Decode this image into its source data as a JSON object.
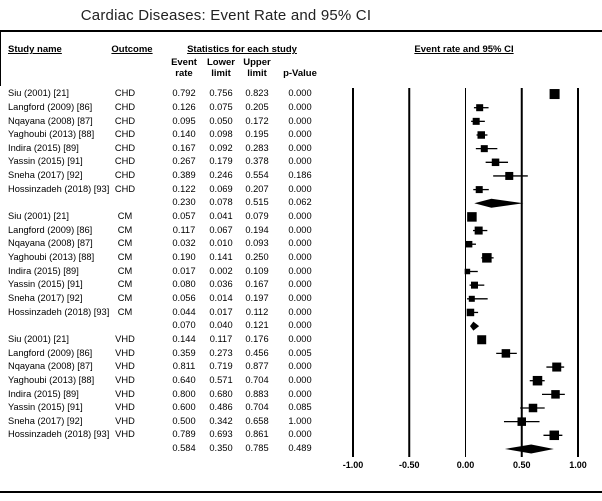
{
  "chart_data": {
    "type": "forest",
    "title": "Cardiac Diseases: Event Rate and 95% CI",
    "columns": {
      "study": "Study name",
      "outcome": "Outcome",
      "stats_group": "Statistics for each study",
      "plot_group": "Event rate and 95% CI",
      "event_rate": "Event\nrate",
      "lower_limit": "Lower\nlimit",
      "upper_limit": "Upper\nlimit",
      "p_value": "p-Value"
    },
    "groups": [
      {
        "outcome": "CHD",
        "studies": [
          {
            "name": "Siu (2001) [21]",
            "rate": 0.792,
            "lower": 0.756,
            "upper": 0.823,
            "p": 0.0,
            "marker_size": 10
          },
          {
            "name": "Langford (2009) [86]",
            "rate": 0.126,
            "lower": 0.075,
            "upper": 0.205,
            "p": 0.0,
            "marker_size": 7
          },
          {
            "name": "Nqayana (2008) [87]",
            "rate": 0.095,
            "lower": 0.05,
            "upper": 0.172,
            "p": 0.0,
            "marker_size": 7
          },
          {
            "name": "Yaghoubi (2013) [88]",
            "rate": 0.14,
            "lower": 0.098,
            "upper": 0.195,
            "p": 0.0,
            "marker_size": 7.5
          },
          {
            "name": "Indira (2015) [89]",
            "rate": 0.167,
            "lower": 0.092,
            "upper": 0.283,
            "p": 0.0,
            "marker_size": 7
          },
          {
            "name": "Yassin (2015) [91]",
            "rate": 0.267,
            "lower": 0.179,
            "upper": 0.378,
            "p": 0.0,
            "marker_size": 7.5
          },
          {
            "name": "Sneha (2017) [92]",
            "rate": 0.389,
            "lower": 0.246,
            "upper": 0.554,
            "p": 0.186,
            "marker_size": 8
          },
          {
            "name": "Hossinzadeh (2018) [93]",
            "rate": 0.122,
            "lower": 0.069,
            "upper": 0.207,
            "p": 0.0,
            "marker_size": 7
          }
        ],
        "summary": {
          "rate": 0.23,
          "lower": 0.078,
          "upper": 0.515,
          "p": 0.062
        }
      },
      {
        "outcome": "CM",
        "studies": [
          {
            "name": "Siu (2001) [21]",
            "rate": 0.057,
            "lower": 0.041,
            "upper": 0.079,
            "p": 0.0,
            "marker_size": 9.5
          },
          {
            "name": "Langford (2009) [86]",
            "rate": 0.117,
            "lower": 0.067,
            "upper": 0.194,
            "p": 0.0,
            "marker_size": 8
          },
          {
            "name": "Nqayana (2008) [87]",
            "rate": 0.032,
            "lower": 0.01,
            "upper": 0.093,
            "p": 0.0,
            "marker_size": 6.5
          },
          {
            "name": "Yaghoubi (2013) [88]",
            "rate": 0.19,
            "lower": 0.141,
            "upper": 0.25,
            "p": 0.0,
            "marker_size": 9.5
          },
          {
            "name": "Indira (2015) [89]",
            "rate": 0.017,
            "lower": 0.002,
            "upper": 0.109,
            "p": 0.0,
            "marker_size": 5.5
          },
          {
            "name": "Yassin (2015) [91]",
            "rate": 0.08,
            "lower": 0.036,
            "upper": 0.167,
            "p": 0.0,
            "marker_size": 7
          },
          {
            "name": "Sneha (2017) [92]",
            "rate": 0.056,
            "lower": 0.014,
            "upper": 0.197,
            "p": 0.0,
            "marker_size": 6
          },
          {
            "name": "Hossinzadeh (2018) [93]",
            "rate": 0.044,
            "lower": 0.017,
            "upper": 0.112,
            "p": 0.0,
            "marker_size": 7.5
          }
        ],
        "summary": {
          "rate": 0.07,
          "lower": 0.04,
          "upper": 0.121,
          "p": 0.0
        }
      },
      {
        "outcome": "VHD",
        "studies": [
          {
            "name": "Siu (2001) [21]",
            "rate": 0.144,
            "lower": 0.117,
            "upper": 0.176,
            "p": 0.0,
            "marker_size": 9
          },
          {
            "name": "Langford (2009) [86]",
            "rate": 0.359,
            "lower": 0.273,
            "upper": 0.456,
            "p": 0.005,
            "marker_size": 8.5
          },
          {
            "name": "Nqayana (2008) [87]",
            "rate": 0.811,
            "lower": 0.719,
            "upper": 0.877,
            "p": 0.0,
            "marker_size": 9
          },
          {
            "name": "Yaghoubi (2013) [88]",
            "rate": 0.64,
            "lower": 0.571,
            "upper": 0.704,
            "p": 0.0,
            "marker_size": 9.5
          },
          {
            "name": "Indira (2015) [89]",
            "rate": 0.8,
            "lower": 0.68,
            "upper": 0.883,
            "p": 0.0,
            "marker_size": 8.5
          },
          {
            "name": "Yassin (2015) [91]",
            "rate": 0.6,
            "lower": 0.486,
            "upper": 0.704,
            "p": 0.085,
            "marker_size": 8.5
          },
          {
            "name": "Sneha (2017) [92]",
            "rate": 0.5,
            "lower": 0.342,
            "upper": 0.658,
            "p": 1.0,
            "marker_size": 8.5
          },
          {
            "name": "Hossinzadeh (2018) [93]",
            "rate": 0.789,
            "lower": 0.693,
            "upper": 0.861,
            "p": 0.0,
            "marker_size": 9.5
          }
        ],
        "summary": {
          "rate": 0.584,
          "lower": 0.35,
          "upper": 0.785,
          "p": 0.489
        }
      }
    ],
    "axis": {
      "min": -1.0,
      "max": 1.0,
      "ticks": [
        {
          "v": -1.0,
          "label": "-1.00"
        },
        {
          "v": -0.5,
          "label": "-0.50"
        },
        {
          "v": 0.0,
          "label": "0.00"
        },
        {
          "v": 0.5,
          "label": "0.50"
        },
        {
          "v": 1.0,
          "label": "1.00"
        }
      ]
    },
    "colors": {
      "ink": "#000000",
      "background": "#ffffff"
    }
  }
}
